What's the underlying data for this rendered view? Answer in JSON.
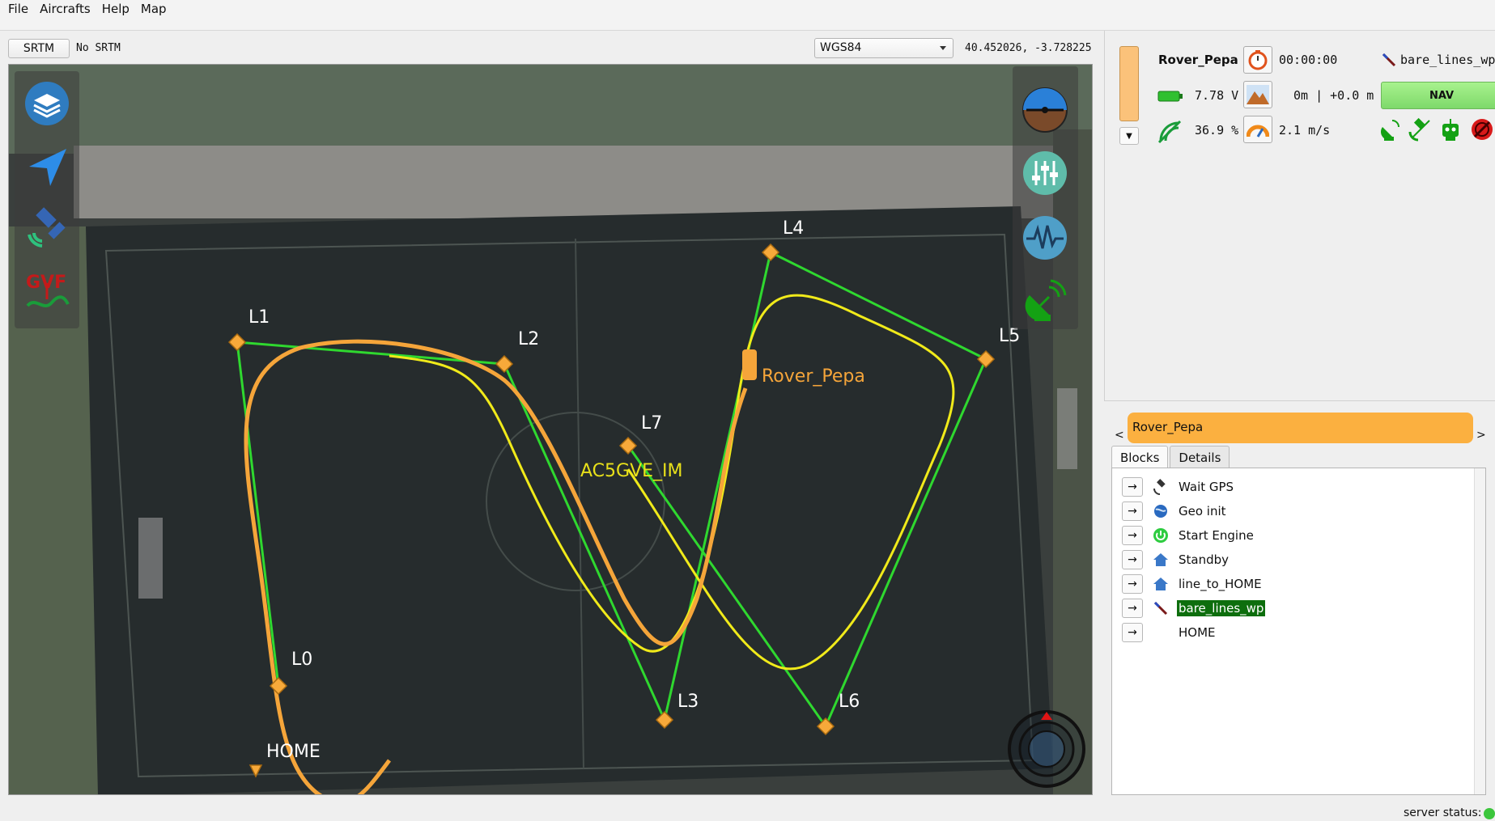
{
  "menu": {
    "file": "File",
    "aircrafts": "Aircrafts",
    "help": "Help",
    "map": "Map"
  },
  "topbar": {
    "srtm_button": "SRTM",
    "srtm_status": "No SRTM",
    "projection": "WGS84",
    "coordinates": "40.452026,   -3.728225"
  },
  "map": {
    "waypoints": [
      "L0",
      "L1",
      "L2",
      "L3",
      "L4",
      "L5",
      "L6",
      "L7",
      "HOME"
    ],
    "aircraft_label": "Rover_Pepa",
    "overlay_text": "AC5GVE_IM",
    "colors": {
      "waypoint": "#f7a93a",
      "path": "#2fd82f",
      "trajectory": "#f0ea1a",
      "track": "#f5a53a"
    }
  },
  "strip": {
    "aircraft_name": "Rover_Pepa",
    "flight_time": "00:00:00",
    "block_name": "bare_lines_wp",
    "voltage": "7.78 V",
    "altitude": "0m | +0.0 m",
    "mode": "NAV",
    "link": "36.9 %",
    "speed": "2.1 m/s",
    "color": "#fbc27a"
  },
  "ac_tab": {
    "name": "Rover_Pepa",
    "prev": "<",
    "next": ">",
    "color": "#fbb040"
  },
  "tabs": {
    "blocks": "Blocks",
    "details": "Details"
  },
  "blocks": [
    {
      "label": "Wait GPS",
      "icon": "satellite-icon"
    },
    {
      "label": "Geo init",
      "icon": "globe-icon"
    },
    {
      "label": "Start Engine",
      "icon": "power-icon"
    },
    {
      "label": "Standby",
      "icon": "home-icon"
    },
    {
      "label": "line_to_HOME",
      "icon": "home-icon"
    },
    {
      "label": "bare_lines_wp",
      "icon": "pen-icon",
      "active": true
    },
    {
      "label": "HOME",
      "icon": ""
    }
  ],
  "status": {
    "server_label": "server status:",
    "color": "#3cc63c"
  }
}
